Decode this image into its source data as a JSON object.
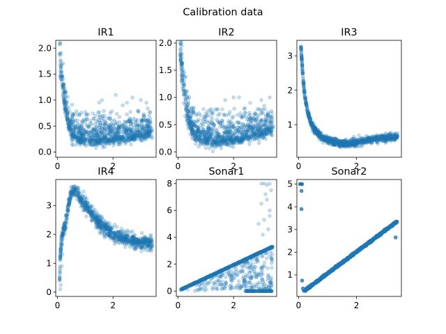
{
  "figure": {
    "suptitle": "Calibration data"
  },
  "chart_data": [
    {
      "type": "scatter",
      "title": "IR1",
      "xlabel": "",
      "ylabel": "",
      "xlim": [
        -0.06,
        3.55
      ],
      "ylim": [
        -0.1,
        2.15
      ],
      "xticks": [
        0,
        2
      ],
      "xtick_labels": [
        "0",
        "2"
      ],
      "yticks": [
        0.0,
        0.5,
        1.0,
        1.5,
        2.0
      ],
      "ytick_labels": [
        "0.0",
        "0.5",
        "1.0",
        "1.5",
        "2.0"
      ],
      "grid": false,
      "point_alpha": 0.25,
      "trend": [
        [
          0.08,
          2.0
        ],
        [
          0.1,
          1.65
        ],
        [
          0.15,
          1.45
        ],
        [
          0.2,
          1.2
        ],
        [
          0.3,
          0.85
        ],
        [
          0.4,
          0.55
        ],
        [
          0.55,
          0.35
        ],
        [
          0.8,
          0.27
        ],
        [
          1.2,
          0.24
        ],
        [
          1.6,
          0.25
        ],
        [
          2.0,
          0.27
        ],
        [
          2.5,
          0.3
        ],
        [
          3.0,
          0.35
        ],
        [
          3.4,
          0.42
        ]
      ],
      "outliers": [
        [
          1.5,
          0.95
        ],
        [
          1.6,
          1.0
        ],
        [
          2.1,
          1.1
        ],
        [
          2.35,
          0.9
        ],
        [
          2.5,
          0.95
        ],
        [
          3.0,
          1.0
        ],
        [
          3.2,
          0.95
        ],
        [
          2.9,
          0.8
        ],
        [
          1.9,
          0.75
        ],
        [
          2.7,
          1.05
        ]
      ]
    },
    {
      "type": "scatter",
      "title": "IR2",
      "xlabel": "",
      "ylabel": "",
      "xlim": [
        -0.06,
        3.55
      ],
      "ylim": [
        -0.1,
        2.05
      ],
      "xticks": [
        0,
        2
      ],
      "xtick_labels": [
        "0",
        "2"
      ],
      "yticks": [
        0.0,
        0.5,
        1.0,
        1.5,
        2.0
      ],
      "ytick_labels": [
        "0.0",
        "0.5",
        "1.0",
        "1.5",
        "2.0"
      ],
      "grid": false,
      "point_alpha": 0.25,
      "trend": [
        [
          0.08,
          1.95
        ],
        [
          0.1,
          1.7
        ],
        [
          0.15,
          1.45
        ],
        [
          0.2,
          1.15
        ],
        [
          0.3,
          0.8
        ],
        [
          0.4,
          0.55
        ],
        [
          0.55,
          0.35
        ],
        [
          0.8,
          0.25
        ],
        [
          1.2,
          0.22
        ],
        [
          1.6,
          0.23
        ],
        [
          2.0,
          0.25
        ],
        [
          2.5,
          0.3
        ],
        [
          3.0,
          0.35
        ],
        [
          3.4,
          0.45
        ]
      ],
      "outliers": [
        [
          1.7,
          0.95
        ],
        [
          2.0,
          1.0
        ],
        [
          2.2,
          1.0
        ],
        [
          2.6,
          0.9
        ],
        [
          3.0,
          0.95
        ],
        [
          3.3,
          1.0
        ],
        [
          3.1,
          0.85
        ],
        [
          2.4,
          0.8
        ],
        [
          1.5,
          0.7
        ]
      ]
    },
    {
      "type": "scatter",
      "title": "IR3",
      "xlabel": "",
      "ylabel": "",
      "xlim": [
        -0.06,
        3.55
      ],
      "ylim": [
        0.05,
        3.45
      ],
      "xticks": [
        0,
        2
      ],
      "xtick_labels": [
        "0",
        "2"
      ],
      "yticks": [
        1,
        2,
        3
      ],
      "ytick_labels": [
        "1",
        "2",
        "3"
      ],
      "grid": false,
      "point_alpha": 0.25,
      "trend": [
        [
          0.08,
          3.3
        ],
        [
          0.1,
          3.0
        ],
        [
          0.15,
          2.4
        ],
        [
          0.2,
          1.9
        ],
        [
          0.3,
          1.4
        ],
        [
          0.45,
          1.0
        ],
        [
          0.6,
          0.8
        ],
        [
          0.8,
          0.62
        ],
        [
          1.0,
          0.55
        ],
        [
          1.4,
          0.45
        ],
        [
          1.8,
          0.45
        ],
        [
          2.2,
          0.52
        ],
        [
          2.6,
          0.58
        ],
        [
          3.0,
          0.62
        ],
        [
          3.4,
          0.65
        ]
      ],
      "outliers": []
    },
    {
      "type": "scatter",
      "title": "IR4",
      "xlabel": "",
      "ylabel": "",
      "xlim": [
        -0.06,
        3.55
      ],
      "ylim": [
        -0.15,
        3.9
      ],
      "xticks": [
        0,
        2
      ],
      "xtick_labels": [
        "0",
        "2"
      ],
      "yticks": [
        0,
        1,
        2,
        3
      ],
      "ytick_labels": [
        "0",
        "1",
        "2",
        "3"
      ],
      "grid": false,
      "point_alpha": 0.25,
      "trend": [
        [
          0.08,
          0.3
        ],
        [
          0.1,
          1.2
        ],
        [
          0.15,
          1.8
        ],
        [
          0.2,
          2.1
        ],
        [
          0.3,
          2.4
        ],
        [
          0.4,
          3.0
        ],
        [
          0.5,
          3.5
        ],
        [
          0.65,
          3.55
        ],
        [
          0.8,
          3.3
        ],
        [
          1.0,
          3.0
        ],
        [
          1.3,
          2.6
        ],
        [
          1.6,
          2.3
        ],
        [
          2.0,
          2.0
        ],
        [
          2.4,
          1.85
        ],
        [
          2.8,
          1.75
        ],
        [
          3.2,
          1.7
        ],
        [
          3.4,
          1.7
        ]
      ],
      "outliers": [
        [
          0.1,
          0.1
        ],
        [
          0.12,
          0.25
        ],
        [
          0.15,
          0.9
        ],
        [
          0.18,
          1.3
        ]
      ]
    },
    {
      "type": "scatter",
      "title": "Sonar1",
      "xlabel": "",
      "ylabel": "",
      "xlim": [
        -0.06,
        3.55
      ],
      "ylim": [
        -0.4,
        8.3
      ],
      "xticks": [
        0,
        2
      ],
      "xtick_labels": [
        "0",
        "2"
      ],
      "yticks": [
        0,
        2,
        4,
        6,
        8
      ],
      "ytick_labels": [
        "0",
        "2",
        "4",
        "6",
        "8"
      ],
      "grid": false,
      "point_alpha": 0.25,
      "line": {
        "x": [
          0.1,
          3.4
        ],
        "y": [
          0.1,
          3.3
        ]
      },
      "zero_row": {
        "x_from": 2.4,
        "x_to": 3.4,
        "y": 0.0
      },
      "outliers": [
        [
          3.0,
          8.0
        ],
        [
          3.1,
          8.0
        ],
        [
          3.2,
          7.9
        ],
        [
          3.3,
          8.0
        ],
        [
          3.35,
          7.5
        ],
        [
          3.2,
          6.8
        ],
        [
          3.0,
          6.5
        ],
        [
          3.3,
          6.0
        ],
        [
          2.9,
          5.0
        ],
        [
          3.1,
          5.3
        ],
        [
          3.25,
          4.6
        ],
        [
          3.3,
          5.6
        ],
        [
          3.05,
          4.2
        ],
        [
          3.15,
          7.2
        ]
      ]
    },
    {
      "type": "scatter",
      "title": "Sonar2",
      "xlabel": "",
      "ylabel": "",
      "xlim": [
        -0.06,
        3.55
      ],
      "ylim": [
        0.05,
        5.2
      ],
      "xticks": [
        0,
        2
      ],
      "xtick_labels": [
        "0",
        "2"
      ],
      "yticks": [
        1,
        2,
        3,
        4,
        5
      ],
      "ytick_labels": [
        "1",
        "2",
        "3",
        "4",
        "5"
      ],
      "grid": false,
      "point_alpha": 0.8,
      "line": {
        "x": [
          0.2,
          3.4
        ],
        "y": [
          0.3,
          3.35
        ]
      },
      "outliers": [
        [
          0.05,
          5.0
        ],
        [
          0.08,
          5.0
        ],
        [
          0.1,
          5.0
        ],
        [
          0.12,
          5.0
        ],
        [
          0.1,
          4.7
        ],
        [
          0.1,
          3.9
        ],
        [
          0.12,
          0.75
        ],
        [
          0.15,
          0.4
        ],
        [
          0.18,
          0.3
        ],
        [
          3.35,
          2.65
        ]
      ]
    }
  ]
}
